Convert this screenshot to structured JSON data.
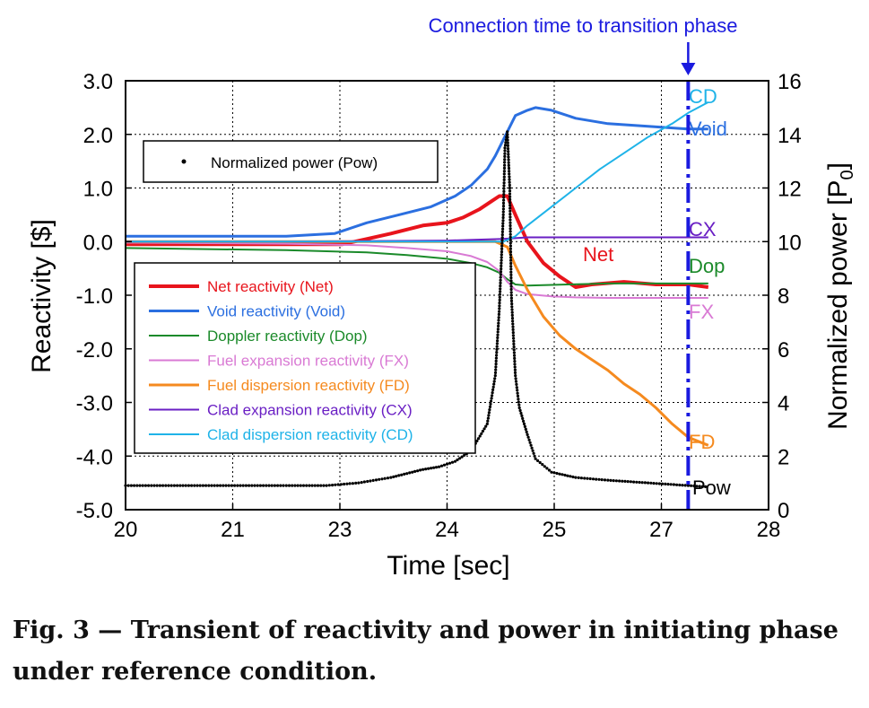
{
  "caption": "Fig. 3 — Transient of reactivity and power in initiating phase under reference condition.",
  "chart_data": {
    "type": "line",
    "xlabel": "Time [sec]",
    "ylabel_left": "Reactivity [$]",
    "ylabel_right": "Normalized power [P0]",
    "ylabel_right_main": "Normalized power [P",
    "ylabel_right_sub": "0",
    "ylabel_right_end": "]",
    "xlim": [
      20,
      28
    ],
    "ylim_left": [
      -5.0,
      3.0
    ],
    "ylim_right": [
      0,
      16
    ],
    "x_ticks": [
      "20",
      "21",
      "23",
      "24",
      "25",
      "27",
      "28"
    ],
    "y_left_ticks": [
      "3.0",
      "2.0",
      "1.0",
      "0.0",
      "-1.0",
      "-2.0",
      "-3.0",
      "-4.0",
      "-5.0"
    ],
    "y_right_ticks": [
      "16",
      "14",
      "12",
      "10",
      "8",
      "6",
      "4",
      "2",
      "0"
    ],
    "grid": "dotted",
    "annotation": {
      "text": "Connection time to transition phase",
      "x": 27.0,
      "color": "#1a1adf"
    },
    "power_legend": "Normalized power (Pow)",
    "series": [
      {
        "key": "net",
        "name": "Net reactivity (Net)",
        "label": "Net",
        "color": "#e8141c",
        "width": 4,
        "x": [
          20,
          21,
          22,
          22.7,
          23,
          23.3,
          23.7,
          24,
          24.2,
          24.4,
          24.55,
          24.65,
          24.75,
          24.85,
          25.0,
          25.2,
          25.4,
          25.6,
          25.8,
          26.2,
          26.6,
          27.0,
          27.25
        ],
        "y": [
          -0.05,
          -0.05,
          -0.05,
          -0.05,
          0.05,
          0.15,
          0.3,
          0.35,
          0.45,
          0.6,
          0.75,
          0.85,
          0.85,
          0.5,
          0.0,
          -0.4,
          -0.65,
          -0.85,
          -0.8,
          -0.75,
          -0.8,
          -0.8,
          -0.85
        ]
      },
      {
        "key": "void",
        "name": "Void reactivity (Void)",
        "label": "Void",
        "color": "#2b6fe0",
        "width": 3,
        "x": [
          20,
          21,
          22,
          22.6,
          23,
          23.4,
          23.8,
          24.1,
          24.3,
          24.5,
          24.6,
          24.75,
          24.85,
          25.0,
          25.1,
          25.3,
          25.6,
          26.0,
          26.5,
          27.0,
          27.25
        ],
        "y": [
          0.1,
          0.1,
          0.1,
          0.15,
          0.35,
          0.5,
          0.65,
          0.85,
          1.05,
          1.35,
          1.6,
          2.05,
          2.35,
          2.45,
          2.5,
          2.45,
          2.3,
          2.2,
          2.15,
          2.1,
          2.1
        ]
      },
      {
        "key": "dop",
        "name": "Doppler reactivity (Dop)",
        "label": "Dop",
        "color": "#1b8a2a",
        "width": 2,
        "x": [
          20,
          21,
          22,
          23,
          23.5,
          24,
          24.3,
          24.5,
          24.65,
          24.75,
          24.85,
          25.0,
          25.5,
          26.0,
          26.5,
          27.0,
          27.25
        ],
        "y": [
          -0.12,
          -0.14,
          -0.16,
          -0.2,
          -0.25,
          -0.32,
          -0.4,
          -0.48,
          -0.58,
          -0.7,
          -0.8,
          -0.82,
          -0.8,
          -0.78,
          -0.78,
          -0.78,
          -0.78
        ]
      },
      {
        "key": "fx",
        "name": "Fuel expansion reactivity (FX)",
        "label": "FX",
        "color": "#d97ad4",
        "width": 2,
        "x": [
          20,
          21,
          22,
          23,
          23.5,
          24,
          24.3,
          24.5,
          24.65,
          24.75,
          24.85,
          25.0,
          25.3,
          25.6,
          26.0,
          26.5,
          27.0,
          27.25
        ],
        "y": [
          -0.02,
          -0.03,
          -0.04,
          -0.07,
          -0.12,
          -0.18,
          -0.27,
          -0.38,
          -0.55,
          -0.75,
          -0.9,
          -0.98,
          -1.02,
          -1.04,
          -1.05,
          -1.05,
          -1.05,
          -1.05
        ]
      },
      {
        "key": "fd",
        "name": "Fuel dispersion reactivity (FD)",
        "label": "FD",
        "color": "#f58a1f",
        "width": 3,
        "x": [
          20,
          24.6,
          24.75,
          24.85,
          25.0,
          25.2,
          25.4,
          25.6,
          25.8,
          26.0,
          26.2,
          26.4,
          26.6,
          26.8,
          27.0,
          27.25
        ],
        "y": [
          0.0,
          0.0,
          -0.1,
          -0.45,
          -0.9,
          -1.4,
          -1.75,
          -2.0,
          -2.2,
          -2.4,
          -2.65,
          -2.85,
          -3.1,
          -3.4,
          -3.65,
          -3.8
        ]
      },
      {
        "key": "cx",
        "name": "Clad expansion reactivity (CX)",
        "label": "CX",
        "color": "#6a1fc4",
        "width": 2,
        "x": [
          20,
          22,
          24,
          24.7,
          25,
          26,
          27,
          27.25
        ],
        "y": [
          0.0,
          0.0,
          0.02,
          0.05,
          0.08,
          0.08,
          0.08,
          0.08
        ]
      },
      {
        "key": "cd",
        "name": "Clad dispersion reactivity (CD)",
        "label": "CD",
        "color": "#1fb3e8",
        "width": 2,
        "x": [
          20,
          24.7,
          24.85,
          25.0,
          25.3,
          25.6,
          25.9,
          26.2,
          26.5,
          26.8,
          27.0,
          27.25
        ],
        "y": [
          0.0,
          0.0,
          0.1,
          0.3,
          0.65,
          1.0,
          1.35,
          1.65,
          1.95,
          2.2,
          2.4,
          2.6
        ]
      }
    ],
    "power": {
      "key": "pow",
      "name": "Normalized power (Pow)",
      "label": "Pow",
      "color": "#000000",
      "axis": "right",
      "x": [
        20,
        21,
        22,
        22.5,
        22.9,
        23.3,
        23.7,
        23.9,
        24.1,
        24.3,
        24.5,
        24.6,
        24.65,
        24.7,
        24.72,
        24.75,
        24.78,
        24.8,
        24.85,
        24.9,
        25.0,
        25.1,
        25.3,
        25.6,
        26.0,
        26.5,
        27.0,
        27.25
      ],
      "y": [
        0.9,
        0.9,
        0.9,
        0.9,
        1.0,
        1.2,
        1.5,
        1.6,
        1.8,
        2.2,
        3.2,
        5.0,
        7.5,
        11.0,
        13.5,
        14.1,
        12.0,
        8.0,
        5.0,
        3.8,
        2.8,
        1.9,
        1.4,
        1.2,
        1.1,
        1.0,
        0.9,
        0.85
      ]
    }
  }
}
